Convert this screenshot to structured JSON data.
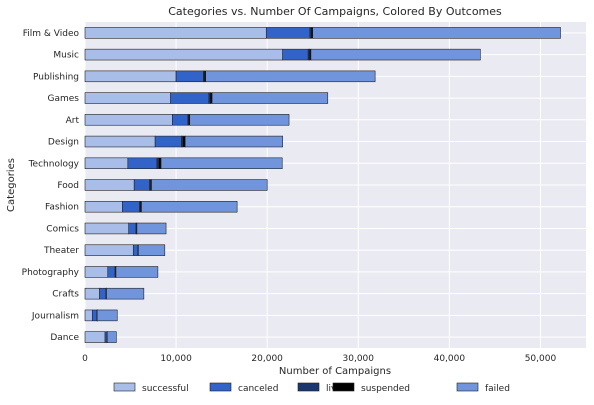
{
  "chart_data": {
    "type": "bar",
    "orientation": "horizontal",
    "stacked": true,
    "title": "Categories vs. Number Of Campaigns, Colored By Outcomes",
    "xlabel": "Number of Campaigns",
    "ylabel": "Categories",
    "xlim": [
      0,
      55000
    ],
    "xticks": [
      0,
      10000,
      20000,
      30000,
      40000,
      50000
    ],
    "xtick_labels": [
      "0",
      "10,000",
      "20,000",
      "30,000",
      "40,000",
      "50,000"
    ],
    "grid": true,
    "legend_position": "bottom",
    "categories": [
      "Film & Video",
      "Music",
      "Publishing",
      "Games",
      "Art",
      "Design",
      "Technology",
      "Food",
      "Fashion",
      "Comics",
      "Theater",
      "Photography",
      "Crafts",
      "Journalism",
      "Dance"
    ],
    "series": [
      {
        "name": "successful",
        "color": "#a9bde9",
        "values": [
          19900,
          21700,
          10000,
          9400,
          9600,
          7700,
          4700,
          5400,
          4100,
          4800,
          5300,
          2500,
          1600,
          800,
          2200
        ]
      },
      {
        "name": "canceled",
        "color": "#3263c8",
        "values": [
          4800,
          2800,
          3000,
          4200,
          1700,
          2900,
          3200,
          1700,
          1900,
          800,
          500,
          800,
          700,
          500,
          200
        ]
      },
      {
        "name": "live",
        "color": "#1b3770",
        "values": [
          150,
          150,
          120,
          150,
          80,
          150,
          200,
          100,
          80,
          50,
          30,
          50,
          30,
          20,
          20
        ]
      },
      {
        "name": "suspended",
        "color": "#000000",
        "values": [
          150,
          150,
          130,
          200,
          120,
          250,
          250,
          100,
          120,
          50,
          30,
          50,
          30,
          20,
          20
        ]
      },
      {
        "name": "failed",
        "color": "#7195dd",
        "values": [
          27200,
          18600,
          18600,
          12700,
          10900,
          10700,
          13300,
          12700,
          10500,
          3200,
          2900,
          4600,
          4100,
          2200,
          1000
        ]
      }
    ]
  }
}
